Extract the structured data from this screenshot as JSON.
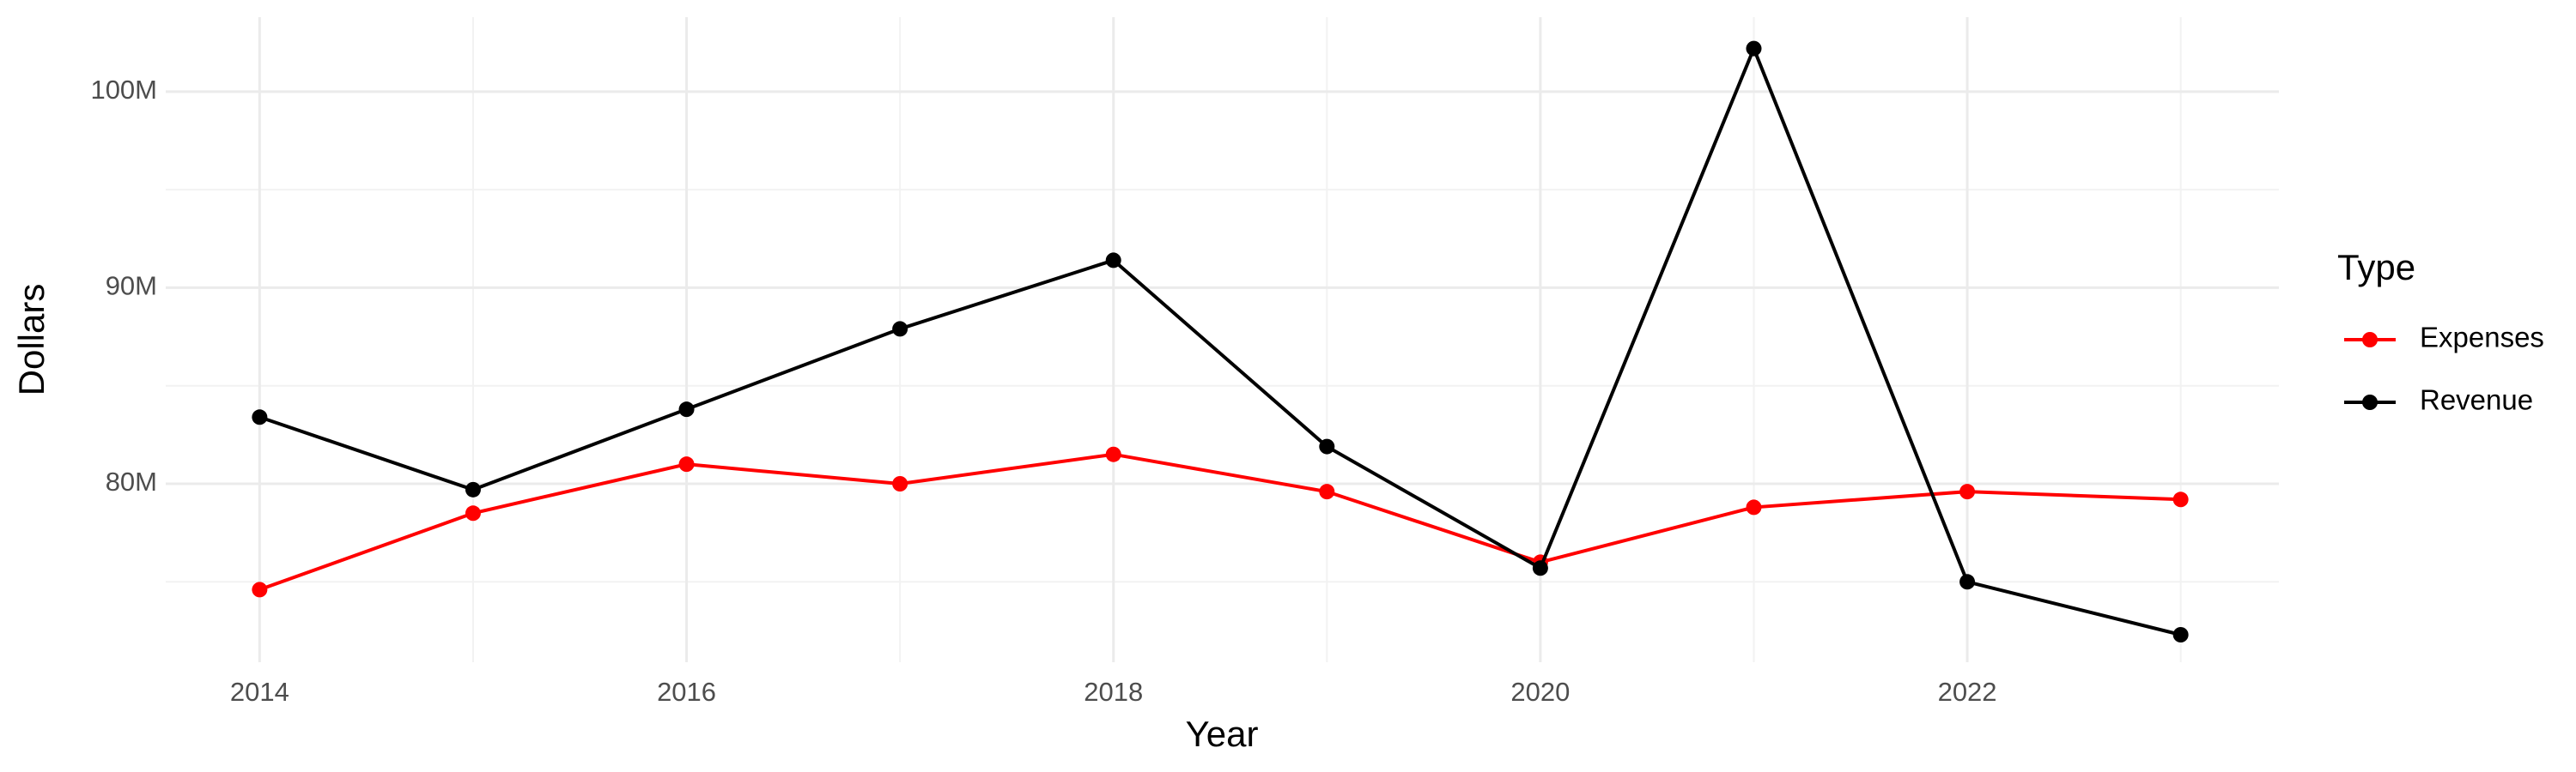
{
  "chart_data": {
    "type": "line",
    "x_label": "Year",
    "y_label": "Dollars",
    "legend_title": "Type",
    "legend_position": "right",
    "grid": true,
    "x": [
      2014,
      2015,
      2016,
      2017,
      2018,
      2019,
      2020,
      2021,
      2022,
      2023
    ],
    "series": [
      {
        "name": "Expenses",
        "color": "#ff0000",
        "values": [
          74600000,
          78500000,
          81000000,
          80000000,
          81500000,
          79600000,
          76000000,
          78800000,
          79600000,
          79200000
        ]
      },
      {
        "name": "Revenue",
        "color": "#000000",
        "values": [
          83400000,
          79700000,
          83800000,
          87900000,
          91400000,
          81900000,
          75700000,
          102200000,
          75000000,
          72300000
        ]
      }
    ],
    "xlim": [
      2013.56,
      2023.46
    ],
    "xticks": [
      2014,
      2016,
      2018,
      2020,
      2022
    ],
    "ylim": [
      70900000,
      103800000
    ],
    "yticks": [
      {
        "value": 80000000,
        "label": "80M"
      },
      {
        "value": 90000000,
        "label": "90M"
      },
      {
        "value": 100000000,
        "label": "100M"
      }
    ]
  }
}
